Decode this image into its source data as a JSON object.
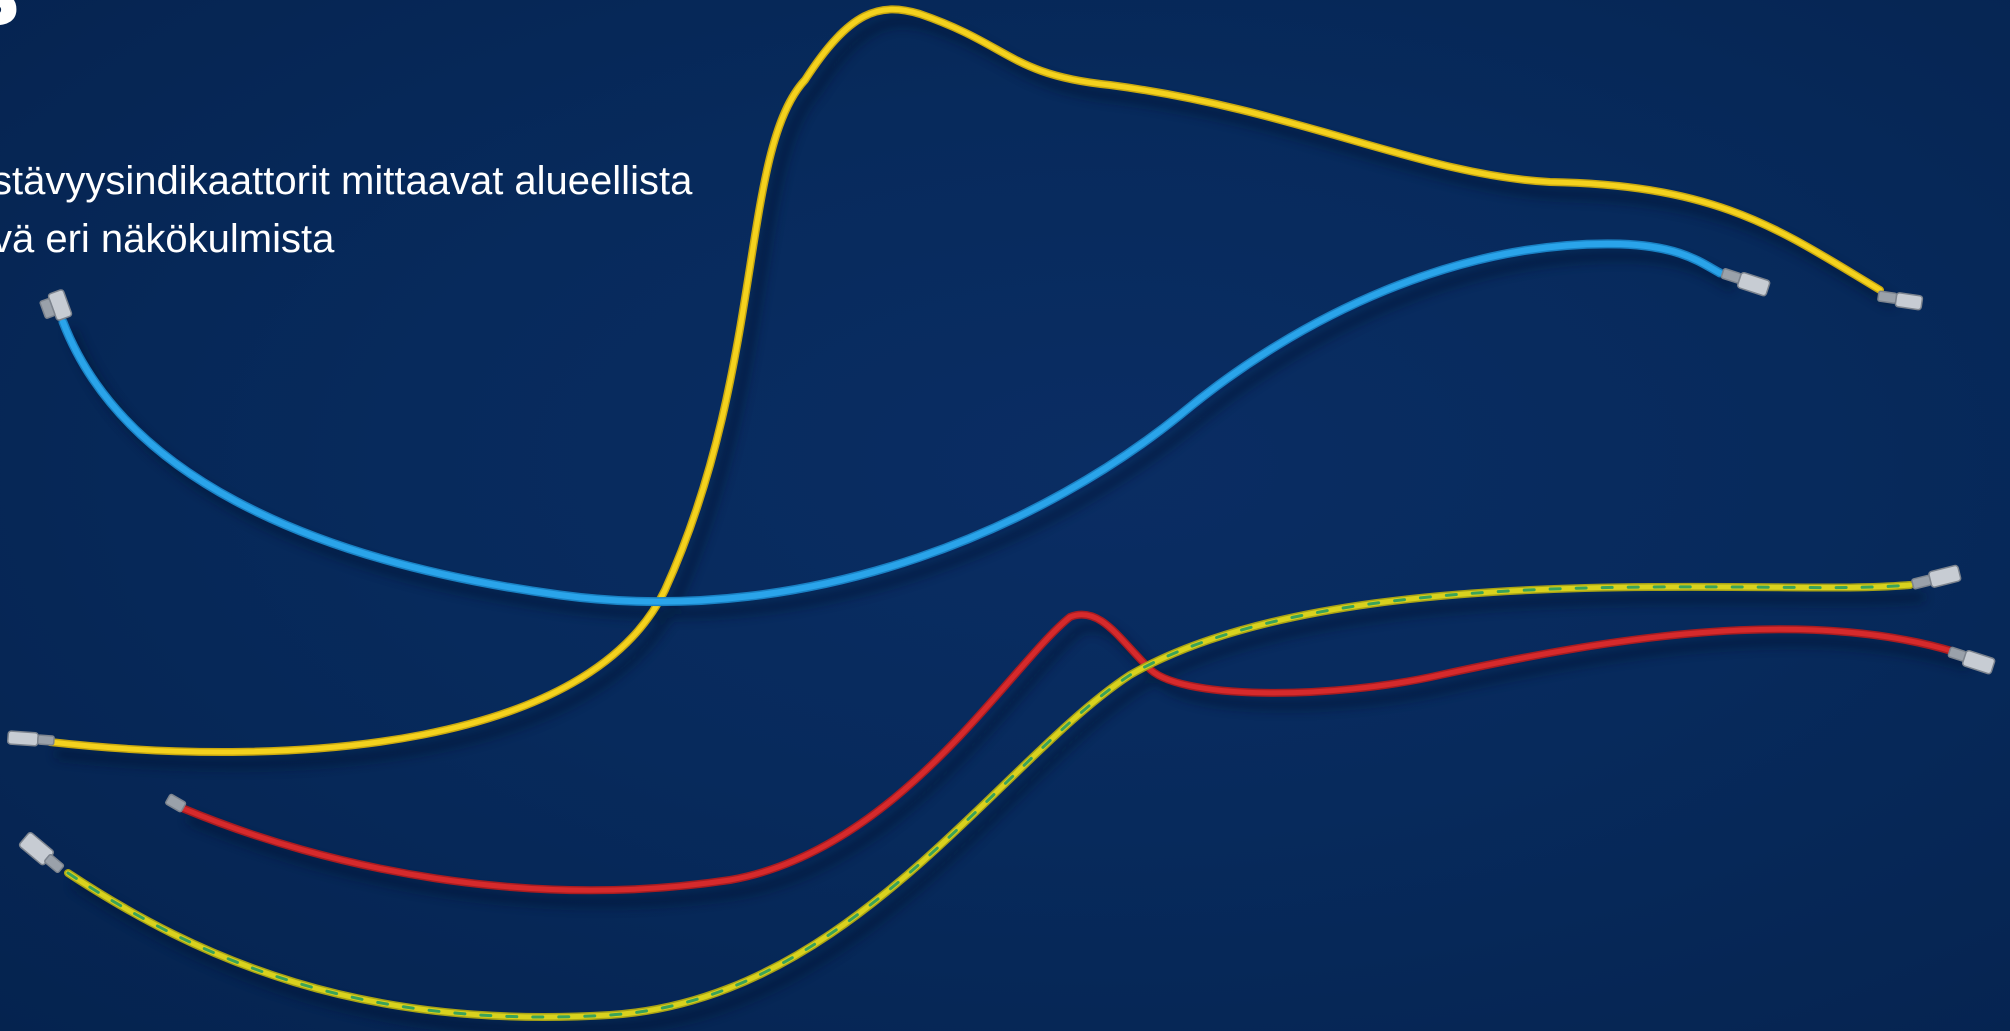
{
  "slide": {
    "heading_lines": [
      "",
      "s"
    ],
    "body_lines": [
      "stävyysindikaattorit mittaavat alueellista",
      "vä eri näkökulmista"
    ]
  },
  "photo": {
    "subject": "five electrical wires with crimped terminals on a dark blue background",
    "background_color": "#062656",
    "wire_colors": {
      "yellow": "#f4d21e",
      "blue": "#2aa4ea",
      "red": "#d62a2c",
      "yellow_green": "#d9d21e",
      "green_stripe": "#3aa35a",
      "terminal": "#c7ccd3"
    }
  }
}
